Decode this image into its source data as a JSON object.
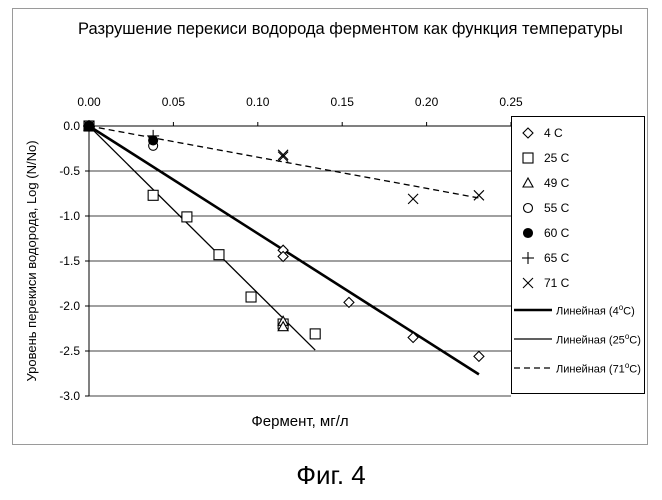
{
  "title": "Разрушение перекиси водорода ферментом как функция температуры",
  "caption": "Фиг. 4",
  "chart_data": {
    "type": "scatter",
    "xlabel": "Фермент, мг/л",
    "ylabel": "Уровень перекиси водорода, Log (N/No)",
    "xlim": [
      0,
      0.25
    ],
    "ylim": [
      -3.0,
      0.0
    ],
    "x_ticks": [
      "0.00",
      "0.05",
      "0.10",
      "0.15",
      "0.20",
      "0.25"
    ],
    "x_tick_values": [
      0,
      0.05,
      0.1,
      0.15,
      0.2,
      0.25
    ],
    "x_axis_position": "top",
    "y_ticks": [
      "0.0",
      "-0.5",
      "-1.0",
      "-1.5",
      "-2.0",
      "-2.5",
      "-3.0"
    ],
    "y_tick_values": [
      0,
      -0.5,
      -1.0,
      -1.5,
      -2.0,
      -2.5,
      -3.0
    ],
    "grid": "horizontal",
    "legend_position": "right",
    "series": [
      {
        "name": "4 C",
        "marker": "diamond",
        "x": [
          0,
          0.115,
          0.115,
          0.154,
          0.192,
          0.231
        ],
        "y": [
          0,
          -1.38,
          -1.45,
          -1.96,
          -2.35,
          -2.56
        ]
      },
      {
        "name": "25 C",
        "marker": "square",
        "x": [
          0,
          0.038,
          0.058,
          0.077,
          0.096,
          0.115,
          0.134
        ],
        "y": [
          0,
          -0.77,
          -1.01,
          -1.43,
          -1.9,
          -2.2,
          -2.31
        ]
      },
      {
        "name": "49 C",
        "marker": "triangle",
        "x": [
          0,
          0.115,
          0.115
        ],
        "y": [
          0,
          -2.17,
          -2.23
        ]
      },
      {
        "name": "55 C",
        "marker": "circle-open",
        "x": [
          0,
          0.038
        ],
        "y": [
          0,
          -0.22
        ]
      },
      {
        "name": "60 C",
        "marker": "circle-filled",
        "x": [
          0,
          0.038
        ],
        "y": [
          0,
          -0.16
        ]
      },
      {
        "name": "65 C",
        "marker": "plus",
        "x": [
          0,
          0.038
        ],
        "y": [
          0,
          -0.11
        ]
      },
      {
        "name": "71 C",
        "marker": "cross",
        "x": [
          0,
          0.115,
          0.115,
          0.192,
          0.231
        ],
        "y": [
          0,
          -0.32,
          -0.34,
          -0.81,
          -0.77
        ]
      }
    ],
    "trendlines": [
      {
        "name": "Линейная (4oC)",
        "name_base": "Линейная (4",
        "name_sup": "o",
        "name_tail": "C)",
        "style": "thick",
        "x": [
          0,
          0.231
        ],
        "y": [
          0,
          -2.76
        ]
      },
      {
        "name": "Линейная (25oC)",
        "name_base": "Линейная (25",
        "name_sup": "o",
        "name_tail": "C)",
        "style": "thin",
        "x": [
          0,
          0.134
        ],
        "y": [
          0,
          -2.49
        ]
      },
      {
        "name": "Линейная (71oC)",
        "name_base": "Линейная (71",
        "name_sup": "o",
        "name_tail": "C)",
        "style": "dashed",
        "x": [
          0,
          0.231
        ],
        "y": [
          0,
          -0.8
        ]
      }
    ]
  }
}
